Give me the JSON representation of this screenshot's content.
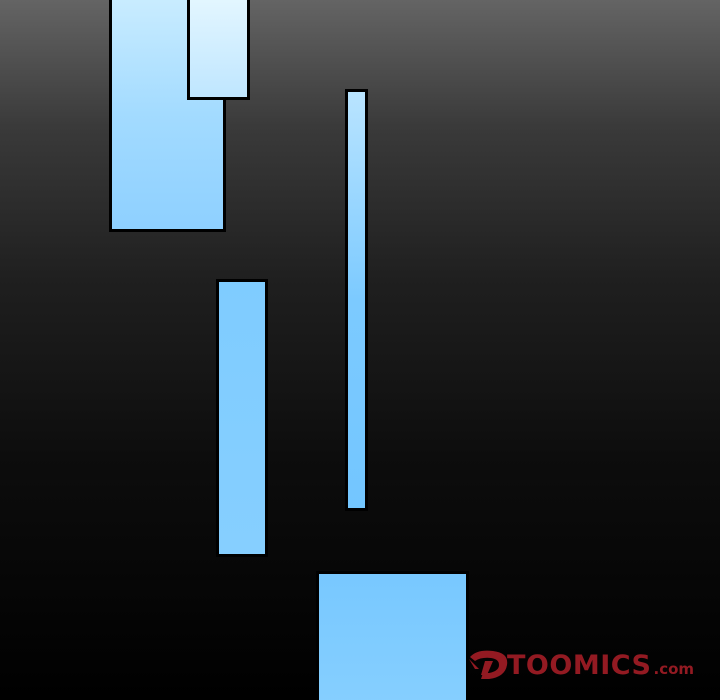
{
  "panels": [
    {
      "id": "panel-1",
      "color": "#a3dbff"
    },
    {
      "id": "panel-2",
      "color": "#d6f1ff"
    },
    {
      "id": "panel-3",
      "color": "#7ccaff"
    },
    {
      "id": "panel-4",
      "color": "#82ceff"
    },
    {
      "id": "panel-5",
      "color": "#7ecbff"
    }
  ],
  "background": {
    "top_color": "#646464",
    "bottom_color": "#000000"
  },
  "watermark": {
    "logo_icon": "toomics-logo-icon",
    "brand": "TOOMICS",
    "domain": ".com",
    "color": "#b3202a"
  }
}
